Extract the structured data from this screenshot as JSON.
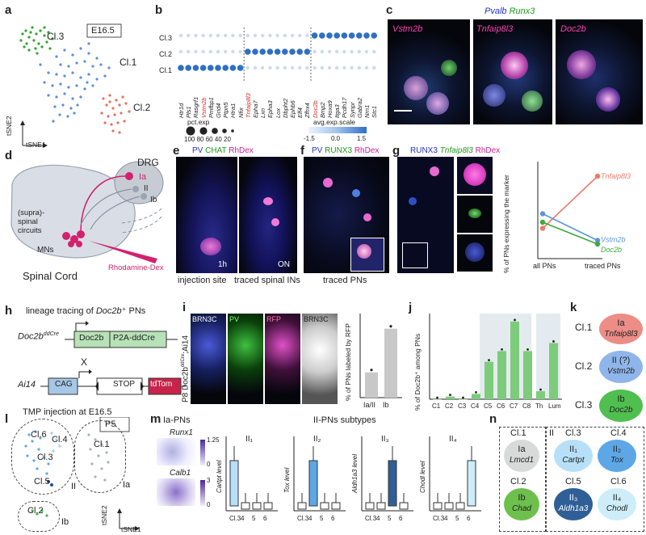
{
  "panels": {
    "a": "a",
    "b": "b",
    "c": "c",
    "d": "d",
    "e": "e",
    "f": "f",
    "g": "g",
    "h": "h",
    "i": "i",
    "j": "j",
    "k": "k",
    "l": "l",
    "m": "m",
    "n": "n"
  },
  "a": {
    "stage": "E16.5",
    "cl1": "Cl.1",
    "cl2": "Cl.2",
    "cl3": "Cl.3",
    "ylab": "tSNE2",
    "xlab": "tSNE1"
  },
  "b": {
    "rows": [
      "Cl.3",
      "Cl.2",
      "Cl.1"
    ],
    "genes": [
      "Htr1d",
      "Pls1",
      "Rasgrf1",
      "Vstm2b",
      "Pmfbp1",
      "Grid4",
      "Ptpn5",
      "Htra1",
      "Nfix",
      "Tnfaip8l3",
      "Epha7",
      "Lxn",
      "Epha3",
      "Lox",
      "Dbpht2",
      "Ephb6",
      "Elf4",
      "Zfhx4",
      "Doc2b",
      "Bmp2",
      "Hoxa9",
      "Itga3",
      "Pcdh17",
      "Synpr",
      "Gabra2",
      "Nrn1",
      "Stc1"
    ],
    "red_genes": [
      "Vstm2b",
      "Tnfaip8l3",
      "Doc2b"
    ],
    "pct_title": "pct.exp",
    "pct_vals": [
      "100",
      "80",
      "60",
      "40",
      "20"
    ],
    "avg_title": "avg.exp.scale",
    "avg_ticks": [
      "-1.5",
      "0.0",
      "1.5"
    ]
  },
  "c": {
    "header_pv": "Pvalb",
    "header_runx": "Runx3",
    "p1": "Vstm2b",
    "p2": "Tnfaip8l3",
    "p3": "Doc2b"
  },
  "d": {
    "drg": "DRG",
    "ia": "Ia",
    "ii": "II",
    "ib": "Ib",
    "circuits": "(supra)-\nspinal\ncircuits",
    "mns": "MNs",
    "rhodamine": "Rhodamine-Dex",
    "cord": "Spinal Cord"
  },
  "e": {
    "pv": "PV",
    "chat": "CHAT",
    "rh": "RhDex",
    "t1": "1h",
    "t2": "ON",
    "cap1": "injection site",
    "cap2": "traced spinal INs"
  },
  "f": {
    "pv": "PV",
    "runx": "RUNX3",
    "rh": "RhDex",
    "cap": "traced PNs"
  },
  "g": {
    "runx": "RUNX3",
    "tnf": "Tnfaip8l3",
    "rh": "RhDex",
    "ylab": "% of PNs expressing the marker",
    "x1": "all PNs",
    "x2": "traced PNs",
    "s1": "Tnfaip8l3",
    "s2": "Vstm2b",
    "s3": "Doc2b"
  },
  "h": {
    "title_pre": "lineage tracing of ",
    "title_gene": "Doc2b",
    "title_post": "⁺ PNs",
    "line1": "Doc2b",
    "line1sup": "ddCre",
    "gene1": "Doc2b",
    "gene2": "P2A-ddCre",
    "x": "X",
    "line2": "Ai14",
    "cag": "CAG",
    "stop": "STOP",
    "tdtom": "tdTom",
    "tmp": "TMP injection at E16.5"
  },
  "i": {
    "brn": "BRN3C",
    "pv": "PV",
    "rfp": "RFP",
    "brn2": "BRN3C",
    "label": "P8 Doc2b",
    "sup": "ddCre",
    "ai": ";Ai14",
    "ylab": "% of PNs labeled by RFP",
    "x1": "Ia/II",
    "x2": "Ib"
  },
  "j": {
    "ylab": "% of Doc2b⁺ among PNs",
    "x": [
      "C1",
      "C2",
      "C3",
      "C4",
      "C5",
      "C6",
      "C7",
      "C8",
      "Th",
      "Lum"
    ]
  },
  "k": {
    "cl1": "Cl.1",
    "cl2": "Cl.2",
    "cl3": "Cl.3",
    "a1": "Ia",
    "b1": "Tnfaip8l3",
    "a2": "II (?)",
    "b2": "Vstm2b",
    "a3": "Ib",
    "b3": "Doc2b"
  },
  "l": {
    "stage": "P5",
    "c6": "Cl.6",
    "c4": "Cl.4",
    "c3": "Cl.3",
    "c1": "Cl.1",
    "c5": "Cl.5",
    "c2": "Cl.2",
    "ia": "Ia",
    "ii": "II",
    "ib": "Ib",
    "ylab": "tSNE2",
    "xlab": "tSNE1"
  },
  "m": {
    "iaTitle": "Ia-PNs",
    "iiTitle": "II-PNs subtypes",
    "runx": "Runx1",
    "calb": "Calb1",
    "s1": "1.25",
    "s2": "0",
    "s3": "3",
    "s4": "0",
    "b1": "II₁",
    "b2": "II₂",
    "b3": "II₃",
    "b4": "II₄",
    "y1": "Cartpt level",
    "y2": "Tox level",
    "y3": "Aldh1a3 level",
    "y4": "Chodl level",
    "x": [
      "Cl.3",
      "4",
      "5",
      "6"
    ]
  },
  "n": {
    "c1": "Cl.1",
    "ia": "Ia",
    "lmcd": "Lmcd1",
    "c2": "Cl.2",
    "ib": "Ib",
    "chad": "Chad",
    "ii": "II",
    "c3": "Cl.3",
    "c4": "Cl.4",
    "c5": "Cl.5",
    "c6": "Cl.6",
    "ii1": "II₁",
    "ii2": "II₂",
    "ii3": "II₃",
    "ii4": "II₄",
    "g1": "Cartpt",
    "g2": "Tox",
    "g3": "Aldh1a3",
    "g4": "Chodl"
  },
  "chart_data": [
    {
      "type": "line",
      "name": "g",
      "x": [
        "all PNs",
        "traced PNs"
      ],
      "series": [
        {
          "name": "Tnfaip8l3",
          "values": [
            25,
            68
          ]
        },
        {
          "name": "Vstm2b",
          "values": [
            37,
            15
          ]
        },
        {
          "name": "Doc2b",
          "values": [
            30,
            12
          ]
        }
      ],
      "ylabel": "% of PNs expressing the marker",
      "xlabel": ""
    },
    {
      "type": "bar",
      "name": "i",
      "categories": [
        "Ia/II",
        "Ib"
      ],
      "values": [
        30,
        82
      ],
      "ylabel": "% of PNs labeled by RFP",
      "ylim": [
        0,
        100
      ]
    },
    {
      "type": "bar",
      "name": "j",
      "categories": [
        "C1",
        "C2",
        "C3",
        "C4",
        "C5",
        "C6",
        "C7",
        "C8",
        "Th",
        "Lum"
      ],
      "values": [
        0,
        1,
        0,
        2,
        14,
        18,
        29,
        18,
        3,
        21
      ],
      "ylabel": "% of Doc2b+ among PNs"
    }
  ]
}
